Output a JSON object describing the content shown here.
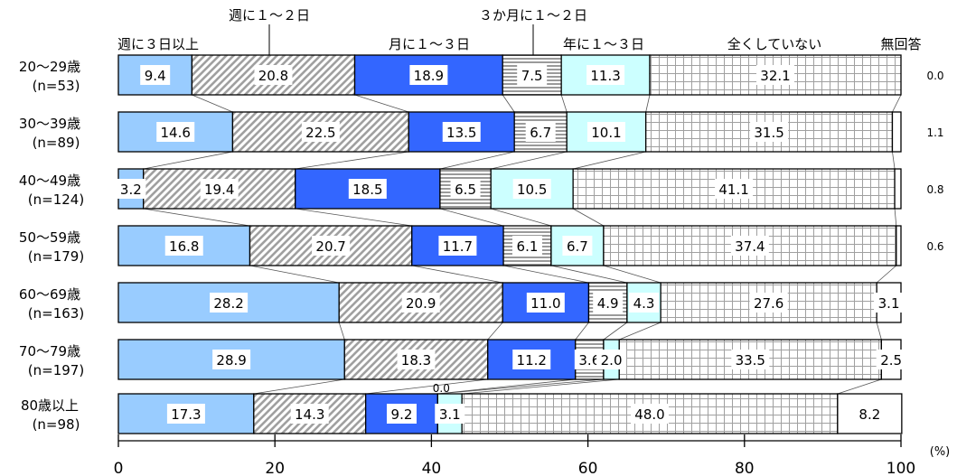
{
  "chart_data": {
    "type": "bar",
    "stacked": true,
    "orientation": "horizontal",
    "percent": true,
    "xlim": [
      0,
      100
    ],
    "x_ticks": [
      "0",
      "20",
      "40",
      "60",
      "80",
      "100"
    ],
    "unit_label": "(%)",
    "categories": [
      {
        "label": "20～29歳",
        "n": "(n=53)"
      },
      {
        "label": "30～39歳",
        "n": "(n=89)"
      },
      {
        "label": "40～49歳",
        "n": "(n=124)"
      },
      {
        "label": "50～59歳",
        "n": "(n=179)"
      },
      {
        "label": "60～69歳",
        "n": "(n=163)"
      },
      {
        "label": "70～79歳",
        "n": "(n=197)"
      },
      {
        "label": "80歳以上",
        "n": "(n=98)"
      }
    ],
    "series": [
      {
        "name": "週に３日以上",
        "color": "#99ccff",
        "pattern": "solid",
        "values": [
          9.4,
          14.6,
          3.2,
          16.8,
          28.2,
          28.9,
          17.3
        ],
        "labels": [
          "9.4",
          "14.6",
          "3.2",
          "16.8",
          "28.2",
          "28.9",
          "17.3"
        ]
      },
      {
        "name": "週に１～２日",
        "color": "#a6a6a6",
        "pattern": "diagonal",
        "values": [
          20.8,
          22.5,
          19.4,
          20.7,
          20.9,
          18.3,
          14.3
        ],
        "labels": [
          "20.8",
          "22.5",
          "19.4",
          "20.7",
          "20.9",
          "18.3",
          "14.3"
        ]
      },
      {
        "name": "月に１～３日",
        "color": "#3366ff",
        "pattern": "solid",
        "values": [
          18.9,
          13.5,
          18.5,
          11.7,
          11.0,
          11.2,
          9.2
        ],
        "labels": [
          "18.9",
          "13.5",
          "18.5",
          "11.7",
          "11.0",
          "11.2",
          "9.2"
        ]
      },
      {
        "name": "３か月に１～２日",
        "color": "#a6a6a6",
        "pattern": "horizontal",
        "values": [
          7.5,
          6.7,
          6.5,
          6.1,
          4.9,
          3.6,
          0.0
        ],
        "labels": [
          "7.5",
          "6.7",
          "6.5",
          "6.1",
          "4.9",
          "3.6",
          "0.0"
        ]
      },
      {
        "name": "年に１～３日",
        "color": "#ccffff",
        "pattern": "solid",
        "values": [
          11.3,
          10.1,
          10.5,
          6.7,
          4.3,
          2.0,
          3.1
        ],
        "labels": [
          "11.3",
          "10.1",
          "10.5",
          "6.7",
          "4.3",
          "2.0",
          "3.1"
        ]
      },
      {
        "name": "全くしていない",
        "color": "#a6a6a6",
        "pattern": "grid",
        "values": [
          32.1,
          31.5,
          41.1,
          37.4,
          27.6,
          33.5,
          48.0
        ],
        "labels": [
          "32.1",
          "31.5",
          "41.1",
          "37.4",
          "27.6",
          "33.5",
          "48.0"
        ]
      },
      {
        "name": "無回答",
        "color": "#ffffff",
        "pattern": "solid",
        "values": [
          0.0,
          1.1,
          0.8,
          0.6,
          3.1,
          2.5,
          8.2
        ],
        "labels": [
          "0.0",
          "1.1",
          "0.8",
          "0.6",
          "3.1",
          "2.5",
          "8.2"
        ]
      }
    ]
  }
}
